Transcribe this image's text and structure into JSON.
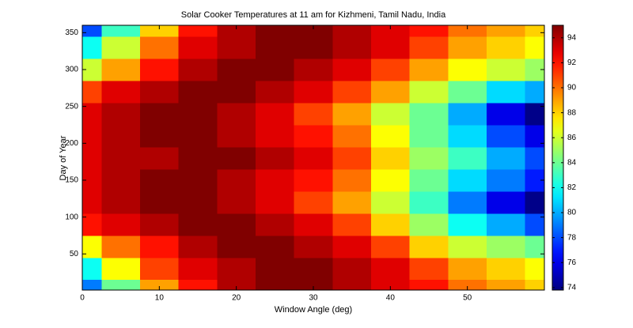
{
  "chart_data": {
    "type": "heatmap",
    "title": "Solar Cooker Temperatures at 11 am for Kizhmeni, Tamil Nadu, India",
    "xlabel": "Window Angle (deg)",
    "ylabel": "Day of Year",
    "colormap": "jet",
    "x": [
      0,
      5,
      10,
      15,
      20,
      25,
      30,
      35,
      40,
      45,
      50,
      55,
      60
    ],
    "y": [
      1,
      30,
      60,
      90,
      120,
      150,
      180,
      210,
      240,
      270,
      300,
      330,
      360
    ],
    "values": [
      [
        79,
        84,
        89,
        92,
        94,
        95,
        95,
        94,
        93,
        92,
        90,
        89,
        88
      ],
      [
        82,
        87,
        91,
        93,
        94,
        95,
        95,
        94,
        93,
        91,
        89,
        88,
        87
      ],
      [
        87,
        90,
        92,
        94,
        95,
        95,
        94,
        93,
        91,
        88,
        86,
        85,
        84
      ],
      [
        92,
        93,
        94,
        95,
        95,
        94,
        93,
        91,
        88,
        85,
        82,
        80,
        78
      ],
      [
        93,
        94,
        95,
        95,
        94,
        93,
        91,
        89,
        86,
        83,
        79,
        76,
        74
      ],
      [
        93,
        94,
        95,
        95,
        94,
        93,
        92,
        90,
        87,
        84,
        81,
        79,
        77
      ],
      [
        93,
        94,
        94,
        95,
        95,
        94,
        93,
        91,
        88,
        85,
        83,
        80,
        78
      ],
      [
        93,
        94,
        95,
        95,
        94,
        93,
        92,
        90,
        87,
        84,
        81,
        78,
        76
      ],
      [
        93,
        94,
        95,
        95,
        94,
        93,
        91,
        89,
        86,
        84,
        80,
        76,
        74
      ],
      [
        91,
        93,
        94,
        95,
        95,
        94,
        93,
        91,
        89,
        86,
        84,
        81,
        80
      ],
      [
        86,
        89,
        92,
        94,
        95,
        95,
        94,
        93,
        91,
        89,
        87,
        86,
        85
      ],
      [
        82,
        86,
        90,
        93,
        94,
        95,
        95,
        94,
        93,
        91,
        89,
        88,
        87
      ],
      [
        78,
        83,
        88,
        92,
        94,
        95,
        95,
        94,
        93,
        92,
        90,
        89,
        88
      ]
    ],
    "xlim": [
      0,
      60
    ],
    "ylim": [
      1,
      360
    ],
    "xticks": [
      0,
      10,
      20,
      30,
      40,
      50
    ],
    "yticks": [
      50,
      100,
      150,
      200,
      250,
      300,
      350
    ],
    "clim": [
      73.8,
      95
    ],
    "cticks": [
      74,
      76,
      78,
      80,
      82,
      84,
      86,
      88,
      90,
      92,
      94
    ]
  }
}
